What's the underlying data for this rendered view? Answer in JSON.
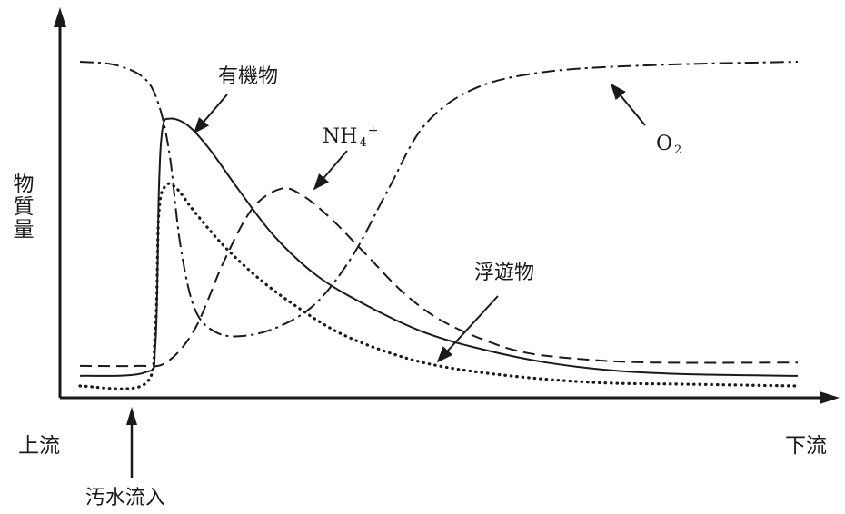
{
  "chart_data": {
    "type": "line",
    "title": "",
    "ylabel": "物質量",
    "xlabel_start": "上流",
    "xlabel_end": "下流",
    "annotation": "汚水流入",
    "inflow_position": 0.1,
    "x_range": [
      0,
      1
    ],
    "y_range": [
      0,
      1
    ],
    "grid": false,
    "legend": "none (curves labelled directly with arrows)",
    "series": [
      {
        "name": "有機物",
        "style": "solid",
        "points": [
          [
            0.0,
            0.06
          ],
          [
            0.09,
            0.07
          ],
          [
            0.105,
            0.15
          ],
          [
            0.11,
            0.62
          ],
          [
            0.115,
            0.8
          ],
          [
            0.125,
            0.83
          ],
          [
            0.15,
            0.81
          ],
          [
            0.18,
            0.74
          ],
          [
            0.22,
            0.62
          ],
          [
            0.27,
            0.48
          ],
          [
            0.33,
            0.36
          ],
          [
            0.4,
            0.27
          ],
          [
            0.48,
            0.19
          ],
          [
            0.56,
            0.14
          ],
          [
            0.65,
            0.1
          ],
          [
            0.75,
            0.075
          ],
          [
            0.85,
            0.065
          ],
          [
            1.0,
            0.06
          ]
        ]
      },
      {
        "name": "NH4+",
        "style": "dashed",
        "points": [
          [
            0.0,
            0.09
          ],
          [
            0.08,
            0.09
          ],
          [
            0.12,
            0.1
          ],
          [
            0.16,
            0.2
          ],
          [
            0.2,
            0.4
          ],
          [
            0.24,
            0.56
          ],
          [
            0.28,
            0.62
          ],
          [
            0.31,
            0.6
          ],
          [
            0.35,
            0.53
          ],
          [
            0.4,
            0.42
          ],
          [
            0.45,
            0.31
          ],
          [
            0.5,
            0.23
          ],
          [
            0.56,
            0.17
          ],
          [
            0.62,
            0.13
          ],
          [
            0.7,
            0.11
          ],
          [
            0.8,
            0.1
          ],
          [
            1.0,
            0.1
          ]
        ]
      },
      {
        "name": "O2",
        "style": "dash-dot",
        "points": [
          [
            0.0,
            1.0
          ],
          [
            0.05,
            0.99
          ],
          [
            0.09,
            0.95
          ],
          [
            0.11,
            0.87
          ],
          [
            0.125,
            0.72
          ],
          [
            0.14,
            0.45
          ],
          [
            0.16,
            0.26
          ],
          [
            0.19,
            0.19
          ],
          [
            0.23,
            0.18
          ],
          [
            0.28,
            0.21
          ],
          [
            0.33,
            0.28
          ],
          [
            0.38,
            0.42
          ],
          [
            0.43,
            0.62
          ],
          [
            0.48,
            0.81
          ],
          [
            0.55,
            0.92
          ],
          [
            0.65,
            0.97
          ],
          [
            0.8,
            0.99
          ],
          [
            1.0,
            1.0
          ]
        ]
      },
      {
        "name": "浮遊物",
        "style": "dotted",
        "points": [
          [
            0.0,
            0.03
          ],
          [
            0.09,
            0.035
          ],
          [
            0.105,
            0.2
          ],
          [
            0.11,
            0.55
          ],
          [
            0.12,
            0.63
          ],
          [
            0.135,
            0.62
          ],
          [
            0.16,
            0.55
          ],
          [
            0.2,
            0.45
          ],
          [
            0.25,
            0.35
          ],
          [
            0.3,
            0.27
          ],
          [
            0.36,
            0.19
          ],
          [
            0.43,
            0.13
          ],
          [
            0.5,
            0.09
          ],
          [
            0.6,
            0.06
          ],
          [
            0.72,
            0.04
          ],
          [
            0.85,
            0.035
          ],
          [
            1.0,
            0.03
          ]
        ]
      }
    ],
    "labels": {
      "organic": "有機物",
      "ammonium_base": "NH",
      "ammonium_sub": "4",
      "ammonium_sup": "+",
      "oxygen_base": "O",
      "oxygen_sub": "2",
      "suspended": "浮遊物"
    }
  },
  "colors": {
    "ink": "#1a1a1a",
    "background": "#ffffff"
  }
}
